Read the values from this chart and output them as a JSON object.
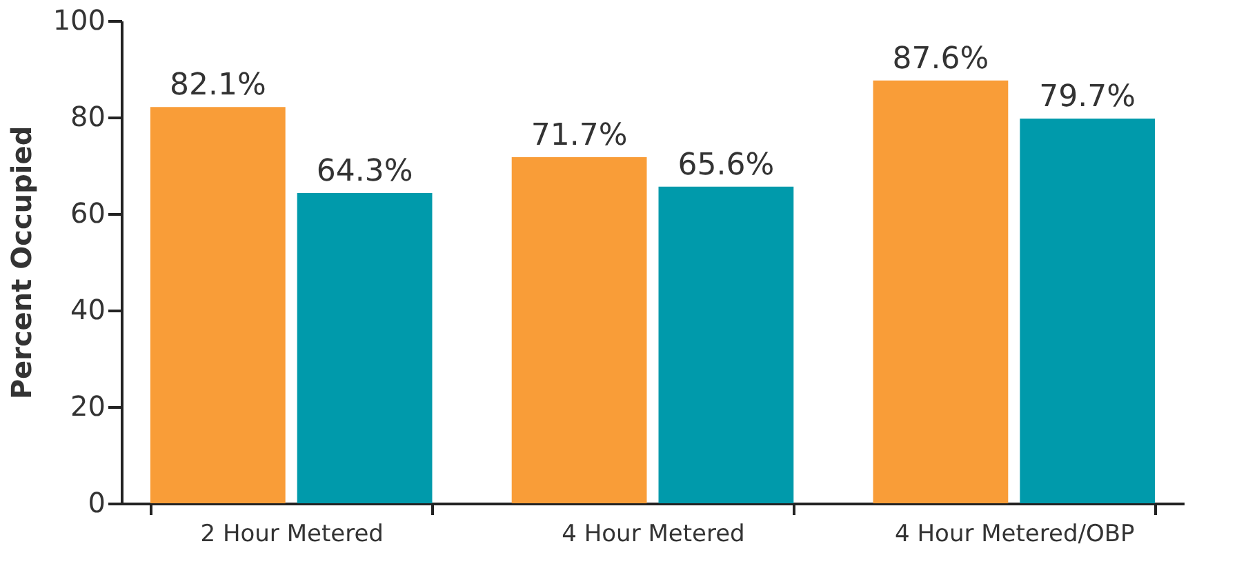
{
  "chart_data": {
    "type": "bar",
    "ylabel": "Percent Occupied",
    "categories": [
      "2 Hour Metered",
      "4 Hour Metered",
      "4 Hour Metered/OBP"
    ],
    "series": [
      {
        "color": "#f99d38",
        "values": [
          82.1,
          71.7,
          87.6
        ],
        "value_labels": [
          "82.1%",
          "71.7%",
          "87.6%"
        ]
      },
      {
        "color": "#009aab",
        "values": [
          64.3,
          65.6,
          79.7
        ],
        "value_labels": [
          "64.3%",
          "65.6%",
          "79.7%"
        ]
      }
    ],
    "ylim": [
      0,
      100
    ],
    "yticks": [
      0,
      20,
      40,
      60,
      80,
      100
    ],
    "grid": false
  }
}
